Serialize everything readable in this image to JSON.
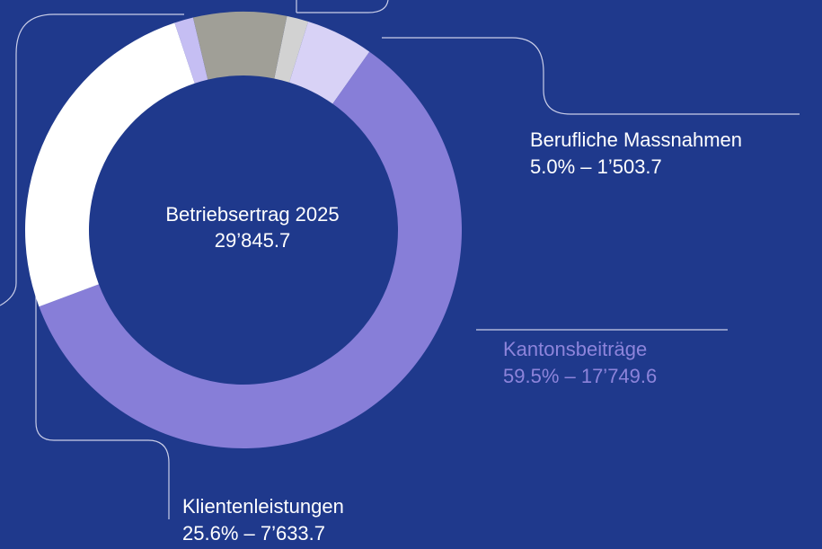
{
  "chart_data": {
    "type": "donut",
    "center_title": "Betriebsertrag 2025",
    "center_value": "29’845.7",
    "categories": [
      null,
      "Berufliche Massnahmen",
      "Kantonsbeiträge",
      "Klientenleistungen",
      null,
      null
    ],
    "values": [
      1.6,
      5.0,
      59.5,
      25.6,
      1.4,
      6.9
    ],
    "value_labels": [
      null,
      "5.0% – 1’503.7",
      "59.5% – 17’749.6",
      "25.6% – 7’633.7",
      null,
      null
    ],
    "colors": [
      "#d2d2d2",
      "#d8d2f6",
      "#877ed8",
      "#ffffff",
      "#c5bef3",
      "#a09f97"
    ],
    "label_colors": [
      null,
      "#ffffff",
      "#8d84db",
      "#ffffff",
      null,
      null
    ]
  }
}
